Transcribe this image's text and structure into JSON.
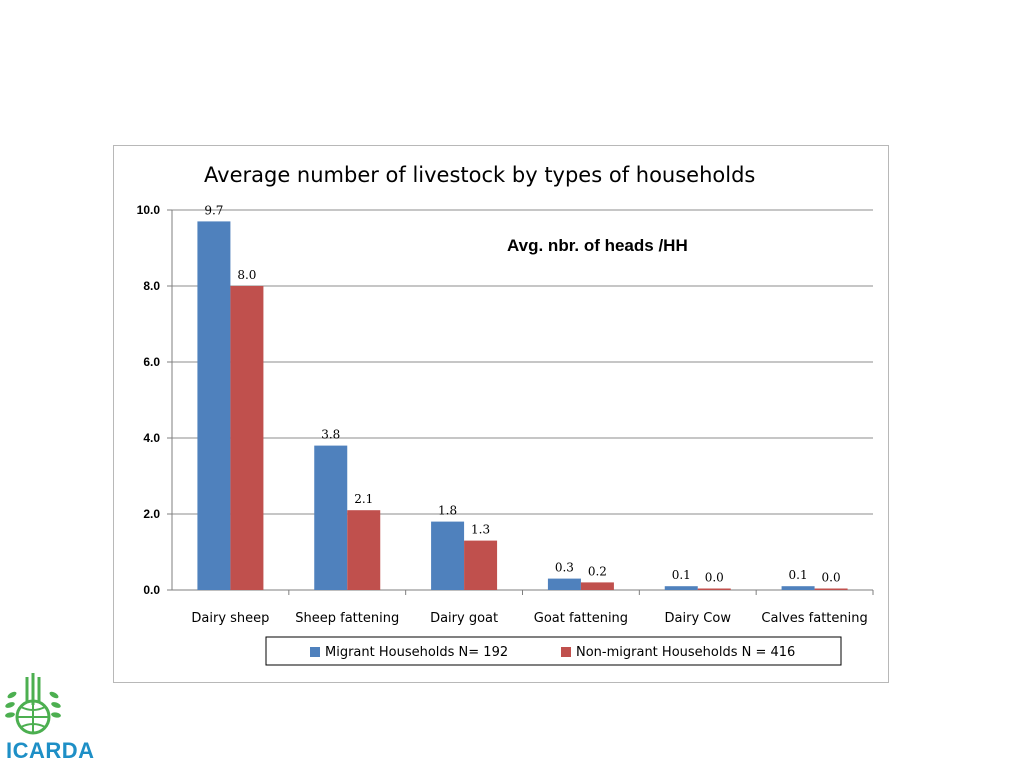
{
  "chart_data": {
    "type": "bar",
    "title": "Average number of livestock by types of households",
    "annotation": "Avg. nbr. of heads /HH",
    "categories": [
      "Dairy sheep",
      "Sheep fattening",
      "Dairy goat",
      "Goat fattening",
      "Dairy Cow",
      "Calves fattening"
    ],
    "series": [
      {
        "name": "Migrant Households N= 192",
        "color": "#4f81bd",
        "values": [
          9.7,
          3.8,
          1.8,
          0.3,
          0.1,
          0.1
        ],
        "labels": [
          "9.7",
          "3.8",
          "1.8",
          "0.3",
          "0.1",
          "0.1"
        ]
      },
      {
        "name": "Non-migrant Households N = 416",
        "color": "#c0504d",
        "values": [
          8.0,
          2.1,
          1.3,
          0.2,
          0.0,
          0.0
        ],
        "labels": [
          "8.0",
          "2.1",
          "1.3",
          "0.2",
          "0.0",
          "0.0"
        ]
      }
    ],
    "ylim": [
      0,
      10
    ],
    "yticks": [
      "0.0",
      "2.0",
      "4.0",
      "6.0",
      "8.0",
      "10.0"
    ],
    "grid": true,
    "legend_position": "bottom"
  },
  "logo": {
    "text": "ICARDA",
    "color": "#1e8fc6",
    "emblem_color": "#4caf50"
  }
}
